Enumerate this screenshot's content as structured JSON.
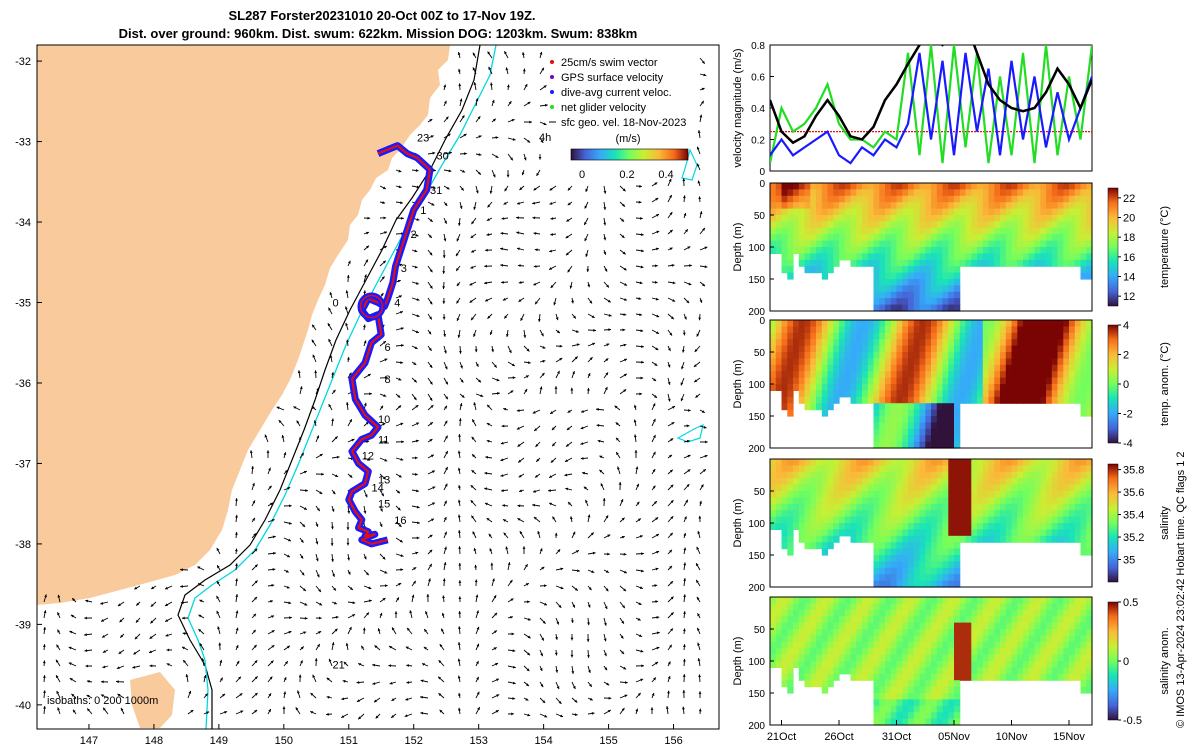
{
  "title_line1": "SL287 Forster20231010 20-Oct 00Z to 17-Nov 19Z.",
  "title_line2": "Dist. over ground: 960km. Dist. swum: 622km. Mission DOG: 1203km. Swum: 838km",
  "colors": {
    "land": "#f9cb9c",
    "isobath_0": "#000000",
    "isobath_200": "#00d7e0",
    "track_red": "#e01010",
    "track_blue": "#1a1aff",
    "glider_green": "#22dd22",
    "geo": "#000000"
  },
  "chart_data": [
    {
      "id": "map",
      "type": "scatter",
      "title": "SL287 Forster20231010 20-Oct 00Z to 17-Nov 19Z.",
      "xlim": [
        146.2,
        156.7
      ],
      "ylim": [
        -40.3,
        -31.8
      ],
      "xticks": [
        147,
        148,
        149,
        150,
        151,
        152,
        153,
        154,
        155,
        156
      ],
      "yticks": [
        -32,
        -33,
        -34,
        -35,
        -36,
        -37,
        -38,
        -39,
        -40
      ],
      "legend": [
        "25cm/s swim vector",
        "GPS surface velocity",
        "dive-avg current veloc.",
        "net glider velocity",
        "sfc geo. vel. 18-Nov-2023"
      ],
      "colorbar_label": "(m/s)",
      "colorbar_ticks": [
        "0",
        "0.2",
        "0.4"
      ],
      "isobaths_note": "isobaths: 0  200  1000m",
      "time_label": "4h",
      "track_lon": [
        151.45,
        151.6,
        151.75,
        151.9,
        152.05,
        152.25,
        152.2,
        152.0,
        151.9,
        151.8,
        151.72,
        151.68,
        151.6,
        151.55,
        151.45,
        151.3,
        151.2,
        151.3,
        151.45,
        151.5,
        151.35,
        151.25,
        151.05,
        151.1,
        151.25,
        151.45,
        151.35,
        151.2,
        151.05,
        151.15,
        151.3,
        151.25,
        151.05,
        151.0,
        151.1,
        151.2,
        151.15,
        151.3,
        151.25,
        151.4,
        151.2,
        151.35,
        151.6
      ],
      "track_lat": [
        -33.15,
        -33.1,
        -33.05,
        -33.15,
        -33.2,
        -33.35,
        -33.6,
        -33.85,
        -34.1,
        -34.35,
        -34.55,
        -34.75,
        -34.95,
        -35.05,
        -35.0,
        -34.95,
        -35.1,
        -35.2,
        -35.15,
        -35.4,
        -35.5,
        -35.75,
        -35.95,
        -36.2,
        -36.4,
        -36.55,
        -36.65,
        -36.7,
        -36.85,
        -37.0,
        -37.1,
        -37.25,
        -37.35,
        -37.45,
        -37.6,
        -37.7,
        -37.8,
        -37.85,
        -37.9,
        -37.88,
        -37.95,
        -38.0,
        -37.95
      ],
      "track_labels": [
        {
          "t": "23",
          "lon": 152.05,
          "lat": -33.0
        },
        {
          "t": "30",
          "lon": 152.35,
          "lat": -33.22
        },
        {
          "t": "31",
          "lon": 152.25,
          "lat": -33.65
        },
        {
          "t": "1",
          "lon": 152.1,
          "lat": -33.9
        },
        {
          "t": "2",
          "lon": 151.95,
          "lat": -34.2
        },
        {
          "t": "3",
          "lon": 151.8,
          "lat": -34.62
        },
        {
          "t": "4",
          "lon": 151.7,
          "lat": -35.05
        },
        {
          "t": "6",
          "lon": 151.55,
          "lat": -35.6
        },
        {
          "t": "8",
          "lon": 151.55,
          "lat": -36.0
        },
        {
          "t": "10",
          "lon": 151.45,
          "lat": -36.5
        },
        {
          "t": "11",
          "lon": 151.45,
          "lat": -36.75
        },
        {
          "t": "12",
          "lon": 151.2,
          "lat": -36.95
        },
        {
          "t": "13",
          "lon": 151.45,
          "lat": -37.25
        },
        {
          "t": "14",
          "lon": 151.35,
          "lat": -37.35
        },
        {
          "t": "15",
          "lon": 151.45,
          "lat": -37.55
        },
        {
          "t": "16",
          "lon": 151.7,
          "lat": -37.75
        },
        {
          "t": "0",
          "lon": 150.75,
          "lat": -35.05
        },
        {
          "t": "21",
          "lon": 150.75,
          "lat": -39.55
        }
      ]
    },
    {
      "id": "velocity",
      "type": "line",
      "ylabel": "velocity magnitude (m/s)",
      "ylim": [
        0,
        0.8
      ],
      "yticks": [
        0,
        0.2,
        0.4,
        0.6,
        0.8
      ],
      "x_range_days": [
        0,
        28
      ],
      "threshold_y": 0.25,
      "series": [
        {
          "name": "surface geostrophic velocity",
          "color": "#000000",
          "x": [
            0,
            1,
            2,
            3,
            4,
            5,
            6,
            7,
            8,
            9,
            10,
            11,
            12,
            13,
            14,
            15,
            16,
            17,
            18,
            19,
            20,
            21,
            22,
            23,
            24,
            25,
            26,
            27,
            28
          ],
          "values": [
            0.45,
            0.25,
            0.18,
            0.22,
            0.35,
            0.45,
            0.35,
            0.22,
            0.2,
            0.28,
            0.45,
            0.55,
            0.68,
            0.8,
            0.85,
            0.8,
            0.9,
            0.95,
            0.75,
            0.55,
            0.45,
            0.4,
            0.38,
            0.4,
            0.5,
            0.65,
            0.55,
            0.4,
            0.58
          ]
        },
        {
          "name": "net glider velocity",
          "color": "#22dd22",
          "x": [
            0,
            1,
            2,
            3,
            4,
            5,
            6,
            7,
            8,
            9,
            10,
            11,
            12,
            13,
            14,
            15,
            16,
            17,
            18,
            19,
            20,
            21,
            22,
            23,
            24,
            25,
            26,
            27,
            28
          ],
          "values": [
            0.05,
            0.4,
            0.25,
            0.3,
            0.4,
            0.55,
            0.3,
            0.2,
            0.2,
            0.15,
            0.25,
            0.2,
            0.75,
            0.1,
            0.8,
            0.05,
            0.8,
            0.15,
            0.75,
            0.05,
            0.6,
            0.1,
            0.75,
            0.05,
            0.8,
            0.1,
            0.6,
            0.2,
            0.8
          ]
        },
        {
          "name": "dive-avg current velocity",
          "color": "#1a1aff",
          "x": [
            0,
            1,
            2,
            3,
            4,
            5,
            6,
            7,
            8,
            9,
            10,
            11,
            12,
            13,
            14,
            15,
            16,
            17,
            18,
            19,
            20,
            21,
            22,
            23,
            24,
            25,
            26,
            27,
            28
          ],
          "values": [
            0.1,
            0.2,
            0.1,
            0.15,
            0.2,
            0.25,
            0.1,
            0.05,
            0.15,
            0.1,
            0.2,
            0.15,
            0.3,
            0.75,
            0.2,
            0.7,
            0.1,
            0.75,
            0.25,
            0.65,
            0.1,
            0.7,
            0.2,
            0.6,
            0.15,
            0.5,
            0.2,
            0.4,
            0.6
          ]
        }
      ]
    },
    {
      "id": "temperature",
      "type": "heatmap",
      "ylabel": "Depth (m)",
      "cbar_label": "temperature (°C)",
      "clim": [
        11,
        23
      ],
      "cbar_ticks": [
        12,
        14,
        16,
        18,
        20,
        22
      ],
      "depth_ylim": [
        0,
        200
      ],
      "yticks": [
        0,
        50,
        100,
        150,
        200
      ],
      "colormap": "turbo",
      "description_rows": "surface warm (20-22), decreasing with depth to 12-14 at 150-200 m"
    },
    {
      "id": "temp_anomaly",
      "type": "heatmap",
      "ylabel": "Depth (m)",
      "cbar_label": "temp. anom. (°C)",
      "clim": [
        -4,
        4
      ],
      "cbar_ticks": [
        -4,
        -2,
        0,
        2,
        4
      ],
      "depth_ylim": [
        0,
        200
      ],
      "yticks": [
        0,
        50,
        100,
        150,
        200
      ],
      "colormap": "turbo"
    },
    {
      "id": "salinity",
      "type": "heatmap",
      "ylabel": "Depth (m)",
      "cbar_label": "salinity",
      "clim": [
        34.8,
        35.85
      ],
      "cbar_ticks": [
        35,
        35.2,
        35.4,
        35.6,
        35.8
      ],
      "depth_ylim": [
        0,
        200
      ],
      "yticks": [
        50,
        100,
        150,
        200
      ],
      "colormap": "turbo"
    },
    {
      "id": "salinity_anomaly",
      "type": "heatmap",
      "ylabel": "Depth (m)",
      "cbar_label": "salinity anom.",
      "clim": [
        -0.5,
        0.5
      ],
      "cbar_ticks": [
        -0.5,
        0,
        0.5
      ],
      "depth_ylim": [
        0,
        200
      ],
      "yticks": [
        50,
        100,
        150,
        200
      ],
      "colormap": "turbo"
    }
  ],
  "time_axis": {
    "labels": [
      "21Oct",
      "26Oct",
      "31Oct",
      "05Nov",
      "10Nov",
      "15Nov"
    ],
    "days": [
      1,
      6,
      11,
      16,
      21,
      26
    ]
  },
  "footer_note": "© IMOS 13-Apr-2024 23:02:42 Hobart time. QC flags 1  2"
}
